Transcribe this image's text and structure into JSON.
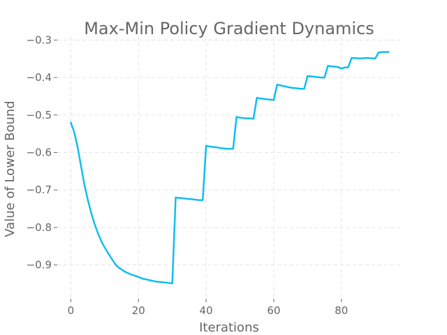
{
  "colors": {
    "series": "#10bdf0",
    "text": "#666666",
    "grid": "#e3e3e3"
  },
  "chart_data": {
    "type": "line",
    "title": "Max-Min Policy Gradient Dynamics",
    "xlabel": "Iterations",
    "ylabel": "Value of Lower Bound",
    "xlim": [
      -4,
      98
    ],
    "ylim": [
      -0.99,
      -0.29
    ],
    "xticks": [
      0,
      20,
      40,
      60,
      80
    ],
    "yticks": [
      -0.9,
      -0.8,
      -0.7,
      -0.6,
      -0.5,
      -0.4,
      -0.3
    ],
    "xtick_labels": [
      "0",
      "20",
      "40",
      "60",
      "80"
    ],
    "ytick_labels": [
      "−0.9",
      "−0.8",
      "−0.7",
      "−0.6",
      "−0.5",
      "−0.4",
      "−0.3"
    ],
    "grid": true,
    "series": [
      {
        "x": [
          0,
          1,
          2,
          3,
          4,
          5,
          6,
          7,
          8,
          9,
          10,
          11,
          12,
          13,
          14,
          15,
          16,
          17,
          18,
          19,
          20,
          21,
          22,
          23,
          24,
          25,
          26,
          27,
          28,
          29,
          30,
          31,
          32,
          33,
          34,
          35,
          36,
          37,
          38,
          39,
          40,
          41,
          42,
          43,
          44,
          45,
          46,
          47,
          48,
          49,
          50,
          51,
          52,
          53,
          54,
          55,
          56,
          57,
          58,
          59,
          60,
          61,
          62,
          63,
          64,
          65,
          66,
          67,
          68,
          69,
          70,
          71,
          72,
          73,
          74,
          75,
          76,
          77,
          78,
          79,
          80,
          81,
          82,
          83,
          84,
          85,
          86,
          87,
          88,
          89,
          90,
          91,
          92,
          93,
          94
        ],
        "y": [
          -0.52,
          -0.545,
          -0.585,
          -0.635,
          -0.685,
          -0.725,
          -0.76,
          -0.79,
          -0.815,
          -0.836,
          -0.853,
          -0.868,
          -0.882,
          -0.896,
          -0.906,
          -0.912,
          -0.918,
          -0.922,
          -0.926,
          -0.929,
          -0.932,
          -0.936,
          -0.938,
          -0.94,
          -0.942,
          -0.944,
          -0.945,
          -0.946,
          -0.947,
          -0.948,
          -0.949,
          -0.72,
          -0.721,
          -0.722,
          -0.723,
          -0.724,
          -0.725,
          -0.726,
          -0.727,
          -0.727,
          -0.582,
          -0.584,
          -0.585,
          -0.586,
          -0.588,
          -0.589,
          -0.59,
          -0.59,
          -0.59,
          -0.505,
          -0.507,
          -0.508,
          -0.509,
          -0.509,
          -0.51,
          -0.454,
          -0.456,
          -0.457,
          -0.458,
          -0.459,
          -0.46,
          -0.419,
          -0.421,
          -0.423,
          -0.425,
          -0.427,
          -0.428,
          -0.429,
          -0.43,
          -0.43,
          -0.396,
          -0.397,
          -0.398,
          -0.399,
          -0.4,
          -0.4,
          -0.369,
          -0.37,
          -0.371,
          -0.372,
          -0.376,
          -0.373,
          -0.373,
          -0.348,
          -0.348,
          -0.349,
          -0.349,
          -0.348,
          -0.348,
          -0.349,
          -0.349,
          -0.333,
          -0.332,
          -0.332,
          -0.332
        ]
      }
    ]
  }
}
